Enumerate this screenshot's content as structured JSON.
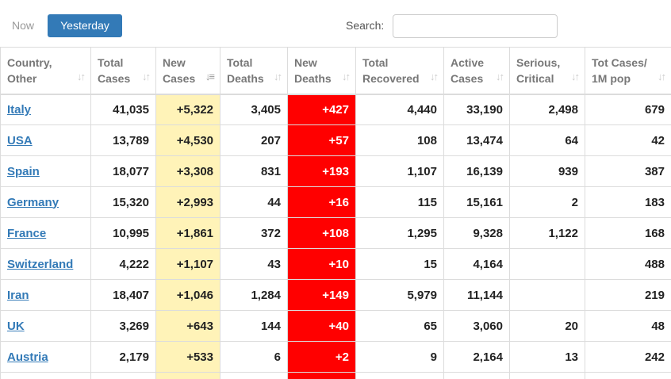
{
  "toolbar": {
    "now_label": "Now",
    "yesterday_label": "Yesterday",
    "search_label": "Search:",
    "search_value": ""
  },
  "table": {
    "headers": [
      {
        "line1": "Country,",
        "line2": "Other"
      },
      {
        "line1": "Total",
        "line2": "Cases"
      },
      {
        "line1": "New",
        "line2": "Cases"
      },
      {
        "line1": "Total",
        "line2": "Deaths"
      },
      {
        "line1": "New",
        "line2": "Deaths"
      },
      {
        "line1": "Total",
        "line2": "Recovered"
      },
      {
        "line1": "Active",
        "line2": "Cases"
      },
      {
        "line1": "Serious,",
        "line2": "Critical"
      },
      {
        "line1": "Tot Cases/",
        "line2": "1M pop"
      }
    ],
    "sort_icon": "sort-arrows-icon",
    "sorted_column": "New Cases",
    "colors": {
      "new_cases_bg": "#fff3b8",
      "new_deaths_bg": "#ff0000",
      "link": "#337ab7",
      "active_button": "#337ab7"
    },
    "rows": [
      {
        "country": "Italy",
        "total_cases": "41,035",
        "new_cases": "+5,322",
        "total_deaths": "3,405",
        "new_deaths": "+427",
        "total_recovered": "4,440",
        "active_cases": "33,190",
        "serious": "2,498",
        "per_million": "679"
      },
      {
        "country": "USA",
        "total_cases": "13,789",
        "new_cases": "+4,530",
        "total_deaths": "207",
        "new_deaths": "+57",
        "total_recovered": "108",
        "active_cases": "13,474",
        "serious": "64",
        "per_million": "42"
      },
      {
        "country": "Spain",
        "total_cases": "18,077",
        "new_cases": "+3,308",
        "total_deaths": "831",
        "new_deaths": "+193",
        "total_recovered": "1,107",
        "active_cases": "16,139",
        "serious": "939",
        "per_million": "387"
      },
      {
        "country": "Germany",
        "total_cases": "15,320",
        "new_cases": "+2,993",
        "total_deaths": "44",
        "new_deaths": "+16",
        "total_recovered": "115",
        "active_cases": "15,161",
        "serious": "2",
        "per_million": "183"
      },
      {
        "country": "France",
        "total_cases": "10,995",
        "new_cases": "+1,861",
        "total_deaths": "372",
        "new_deaths": "+108",
        "total_recovered": "1,295",
        "active_cases": "9,328",
        "serious": "1,122",
        "per_million": "168"
      },
      {
        "country": "Switzerland",
        "total_cases": "4,222",
        "new_cases": "+1,107",
        "total_deaths": "43",
        "new_deaths": "+10",
        "total_recovered": "15",
        "active_cases": "4,164",
        "serious": "",
        "per_million": "488"
      },
      {
        "country": "Iran",
        "total_cases": "18,407",
        "new_cases": "+1,046",
        "total_deaths": "1,284",
        "new_deaths": "+149",
        "total_recovered": "5,979",
        "active_cases": "11,144",
        "serious": "",
        "per_million": "219"
      },
      {
        "country": "UK",
        "total_cases": "3,269",
        "new_cases": "+643",
        "total_deaths": "144",
        "new_deaths": "+40",
        "total_recovered": "65",
        "active_cases": "3,060",
        "serious": "20",
        "per_million": "48"
      },
      {
        "country": "Austria",
        "total_cases": "2,179",
        "new_cases": "+533",
        "total_deaths": "6",
        "new_deaths": "+2",
        "total_recovered": "9",
        "active_cases": "2,164",
        "serious": "13",
        "per_million": "242"
      }
    ]
  }
}
